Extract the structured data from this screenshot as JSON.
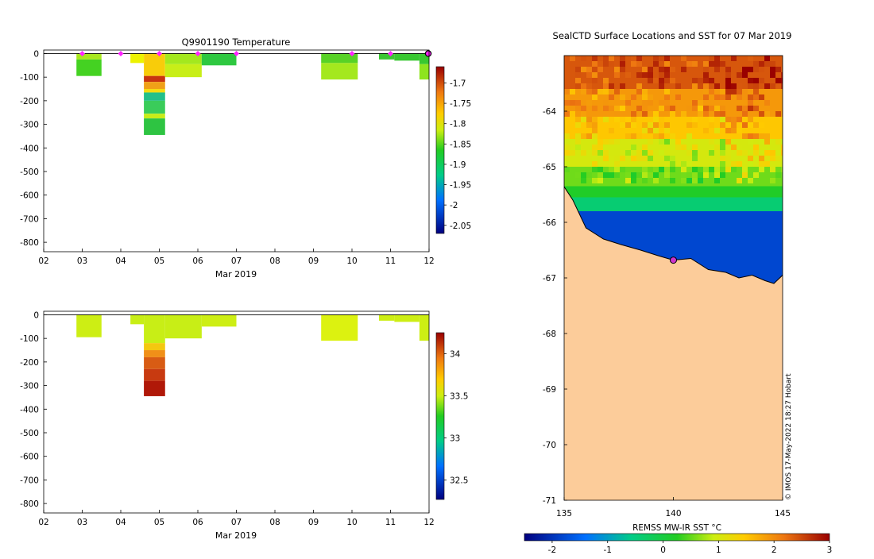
{
  "chart_data": [
    {
      "id": "temp",
      "type": "heatmap",
      "title": "Q9901190  Temperature",
      "xlabel": "Mar 2019",
      "ylabel": "",
      "x_ticks": [
        "02",
        "03",
        "04",
        "05",
        "06",
        "07",
        "08",
        "09",
        "10",
        "11",
        "12"
      ],
      "x_range": [
        2,
        12
      ],
      "y_ticks": [
        0,
        -100,
        -200,
        -300,
        -400,
        -500,
        -600,
        -700,
        -800
      ],
      "ylim": [
        -840,
        15
      ],
      "colorbar": {
        "ticks": [
          -1.7,
          -1.75,
          -1.8,
          -1.85,
          -1.9,
          -1.95,
          -2,
          -2.05
        ],
        "range": [
          -2.07,
          -1.66
        ]
      },
      "markers_day": [
        3.0,
        4.0,
        5.0,
        6.0,
        7.0,
        10.0,
        11.0
      ],
      "marker_color": "#ff22ff",
      "end_marker_day": 11.98,
      "profiles": [
        {
          "x0": 2.85,
          "x1": 3.5,
          "cells": [
            [
              0,
              -25,
              "#a8e81e"
            ],
            [
              -25,
              -95,
              "#44d222"
            ]
          ]
        },
        {
          "x0": 4.25,
          "x1": 4.6,
          "cells": [
            [
              0,
              -40,
              "#ecf200"
            ]
          ]
        },
        {
          "x0": 4.6,
          "x1": 5.15,
          "cells": [
            [
              0,
              -95,
              "#f8cc0a"
            ],
            [
              -95,
              -120,
              "#c83410"
            ],
            [
              -120,
              -150,
              "#f0a018"
            ],
            [
              -150,
              -165,
              "#f4dc10"
            ],
            [
              -165,
              -200,
              "#22c08a"
            ],
            [
              -200,
              -255,
              "#3acc5a"
            ],
            [
              -255,
              -275,
              "#c8ec18"
            ],
            [
              -275,
              -345,
              "#2ec442"
            ]
          ]
        },
        {
          "x0": 5.15,
          "x1": 6.1,
          "cells": [
            [
              0,
              -45,
              "#a4e81e"
            ],
            [
              -45,
              -100,
              "#c8ee18"
            ]
          ]
        },
        {
          "x0": 6.1,
          "x1": 7.0,
          "cells": [
            [
              0,
              -50,
              "#2ec840"
            ]
          ]
        },
        {
          "x0": 9.2,
          "x1": 10.15,
          "cells": [
            [
              0,
              -40,
              "#58d226"
            ],
            [
              -40,
              -110,
              "#a4e81e"
            ]
          ]
        },
        {
          "x0": 10.7,
          "x1": 11.1,
          "cells": [
            [
              0,
              -25,
              "#3ac632"
            ]
          ]
        },
        {
          "x0": 11.1,
          "x1": 11.75,
          "cells": [
            [
              0,
              -30,
              "#38c830"
            ]
          ]
        },
        {
          "x0": 11.75,
          "x1": 12.0,
          "cells": [
            [
              0,
              -45,
              "#38c830"
            ],
            [
              -45,
              -110,
              "#8ee41e"
            ]
          ]
        }
      ]
    },
    {
      "id": "sal",
      "type": "heatmap",
      "title": "",
      "xlabel": "Mar 2019",
      "ylabel": "",
      "x_ticks": [
        "02",
        "03",
        "04",
        "05",
        "06",
        "07",
        "08",
        "09",
        "10",
        "11",
        "12"
      ],
      "x_range": [
        2,
        12
      ],
      "y_ticks": [
        0,
        -100,
        -200,
        -300,
        -400,
        -500,
        -600,
        -700,
        -800
      ],
      "ylim": [
        -840,
        15
      ],
      "colorbar": {
        "ticks": [
          34,
          33.5,
          33,
          32.5
        ],
        "range": [
          32.27,
          34.25
        ]
      },
      "profiles": [
        {
          "x0": 2.85,
          "x1": 3.5,
          "cells": [
            [
              0,
              -95,
              "#cdee14"
            ]
          ]
        },
        {
          "x0": 4.25,
          "x1": 4.6,
          "cells": [
            [
              0,
              -40,
              "#c8ee16"
            ]
          ]
        },
        {
          "x0": 4.6,
          "x1": 5.15,
          "cells": [
            [
              0,
              -120,
              "#c8ee16"
            ],
            [
              -120,
              -150,
              "#f4c810"
            ],
            [
              -150,
              -180,
              "#f09018"
            ],
            [
              -180,
              -230,
              "#d85c14"
            ],
            [
              -230,
              -280,
              "#c83a10"
            ],
            [
              -280,
              -345,
              "#b01808"
            ]
          ]
        },
        {
          "x0": 5.15,
          "x1": 6.1,
          "cells": [
            [
              0,
              -100,
              "#c8ee16"
            ]
          ]
        },
        {
          "x0": 6.1,
          "x1": 7.0,
          "cells": [
            [
              0,
              -50,
              "#cdee14"
            ]
          ]
        },
        {
          "x0": 9.2,
          "x1": 10.15,
          "cells": [
            [
              0,
              -110,
              "#dcf210"
            ]
          ]
        },
        {
          "x0": 10.7,
          "x1": 11.1,
          "cells": [
            [
              0,
              -25,
              "#cdee14"
            ]
          ]
        },
        {
          "x0": 11.1,
          "x1": 11.75,
          "cells": [
            [
              0,
              -30,
              "#cdee14"
            ]
          ]
        },
        {
          "x0": 11.75,
          "x1": 12.0,
          "cells": [
            [
              0,
              -110,
              "#cdee14"
            ]
          ]
        }
      ]
    },
    {
      "id": "map",
      "type": "heatmap",
      "title": "SealCTD Surface Locations and SST for 07 Mar 2019",
      "xlabel": "",
      "x_ticks": [
        135,
        140,
        145
      ],
      "x_range": [
        135,
        145
      ],
      "y_ticks": [
        -64,
        -65,
        -66,
        -67,
        -68,
        -69,
        -70,
        -71
      ],
      "ylim": [
        -71,
        -63.0
      ],
      "land_color": "#fccc9a",
      "colorbar": {
        "label": "REMSS MW-IR SST °C",
        "ticks": [
          -2,
          -1,
          0,
          1,
          2,
          3
        ],
        "range": [
          -2.5,
          3
        ]
      },
      "sst_bands": [
        {
          "lat0": -63.0,
          "lat1": -63.6,
          "temp": 2.4
        },
        {
          "lat0": -63.6,
          "lat1": -64.1,
          "temp": 1.9
        },
        {
          "lat0": -64.1,
          "lat1": -64.5,
          "temp": 1.5
        },
        {
          "lat0": -64.5,
          "lat1": -65.0,
          "temp": 1.0
        },
        {
          "lat0": -65.0,
          "lat1": -65.35,
          "temp": 0.55
        },
        {
          "lat0": -65.35,
          "lat1": -65.55,
          "temp": 0.2
        },
        {
          "lat0": -65.55,
          "lat1": -65.8,
          "temp": -0.4
        },
        {
          "lat0": -65.8,
          "lat1": -67.2,
          "temp": -1.8
        }
      ],
      "coast": [
        [
          134.9,
          -65.3
        ],
        [
          135.4,
          -65.6
        ],
        [
          136.0,
          -66.1
        ],
        [
          136.8,
          -66.3
        ],
        [
          137.6,
          -66.4
        ],
        [
          138.5,
          -66.5
        ],
        [
          139.3,
          -66.6
        ],
        [
          140.0,
          -66.68
        ],
        [
          140.8,
          -66.65
        ],
        [
          141.6,
          -66.85
        ],
        [
          142.4,
          -66.9
        ],
        [
          143.0,
          -67.0
        ],
        [
          143.6,
          -66.95
        ],
        [
          144.2,
          -67.05
        ],
        [
          144.6,
          -67.1
        ],
        [
          145.0,
          -66.95
        ]
      ],
      "station": {
        "lon": 140.0,
        "lat": -66.68
      },
      "credit": "© IMOS 17-May-2022 18:27 Hobart"
    }
  ]
}
